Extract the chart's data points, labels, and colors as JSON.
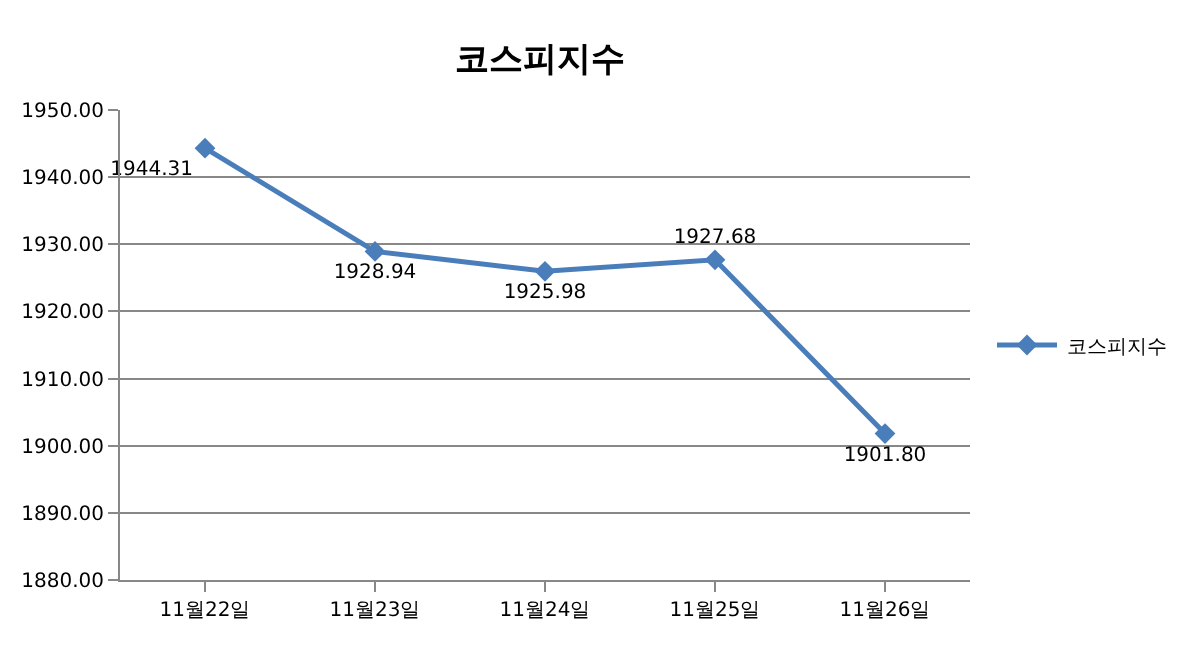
{
  "chart_data": {
    "type": "line",
    "title": "코스피지수",
    "categories": [
      "11월22일",
      "11월23일",
      "11월24일",
      "11월25일",
      "11월26일"
    ],
    "series": [
      {
        "name": "코스피지수",
        "color": "#4a7ebb",
        "values": [
          1944.31,
          1928.94,
          1925.98,
          1927.68,
          1901.8
        ],
        "value_labels": [
          "1944.31",
          "1928.94",
          "1925.98",
          "1927.68",
          "1901.80"
        ]
      }
    ],
    "ylim": [
      1880,
      1950
    ],
    "yticks": [
      {
        "value": 1880,
        "label": "1880.00"
      },
      {
        "value": 1890,
        "label": "1890.00"
      },
      {
        "value": 1900,
        "label": "1900.00"
      },
      {
        "value": 1910,
        "label": "1910.00"
      },
      {
        "value": 1920,
        "label": "1920.00"
      },
      {
        "value": 1930,
        "label": "1930.00"
      },
      {
        "value": 1940,
        "label": "1940.00"
      },
      {
        "value": 1950,
        "label": "1950.00"
      }
    ],
    "grid": "y",
    "legend": "right",
    "marker": "diamond",
    "line_style": "solid"
  }
}
